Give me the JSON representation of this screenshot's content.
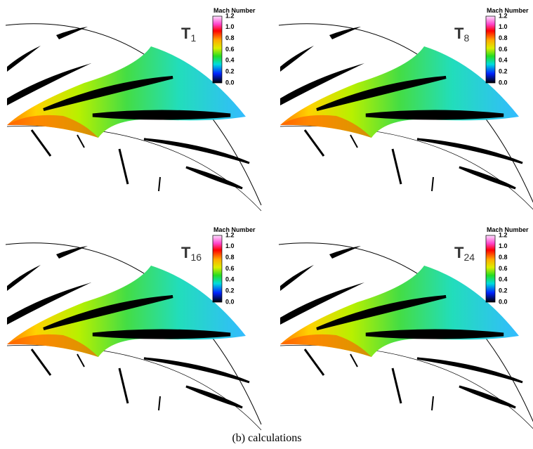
{
  "colorbar": {
    "title": "Mach Number",
    "ticks": [
      "1.2",
      "1.0",
      "0.8",
      "0.6",
      "0.4",
      "0.2",
      "0.0"
    ]
  },
  "panels": [
    {
      "label": {
        "main": "T",
        "sub": "1"
      }
    },
    {
      "label": {
        "main": "T",
        "sub": "8"
      }
    },
    {
      "label": {
        "main": "T",
        "sub": "16"
      }
    },
    {
      "label": {
        "main": "T",
        "sub": "24"
      }
    }
  ],
  "caption": "(b) calculations"
}
